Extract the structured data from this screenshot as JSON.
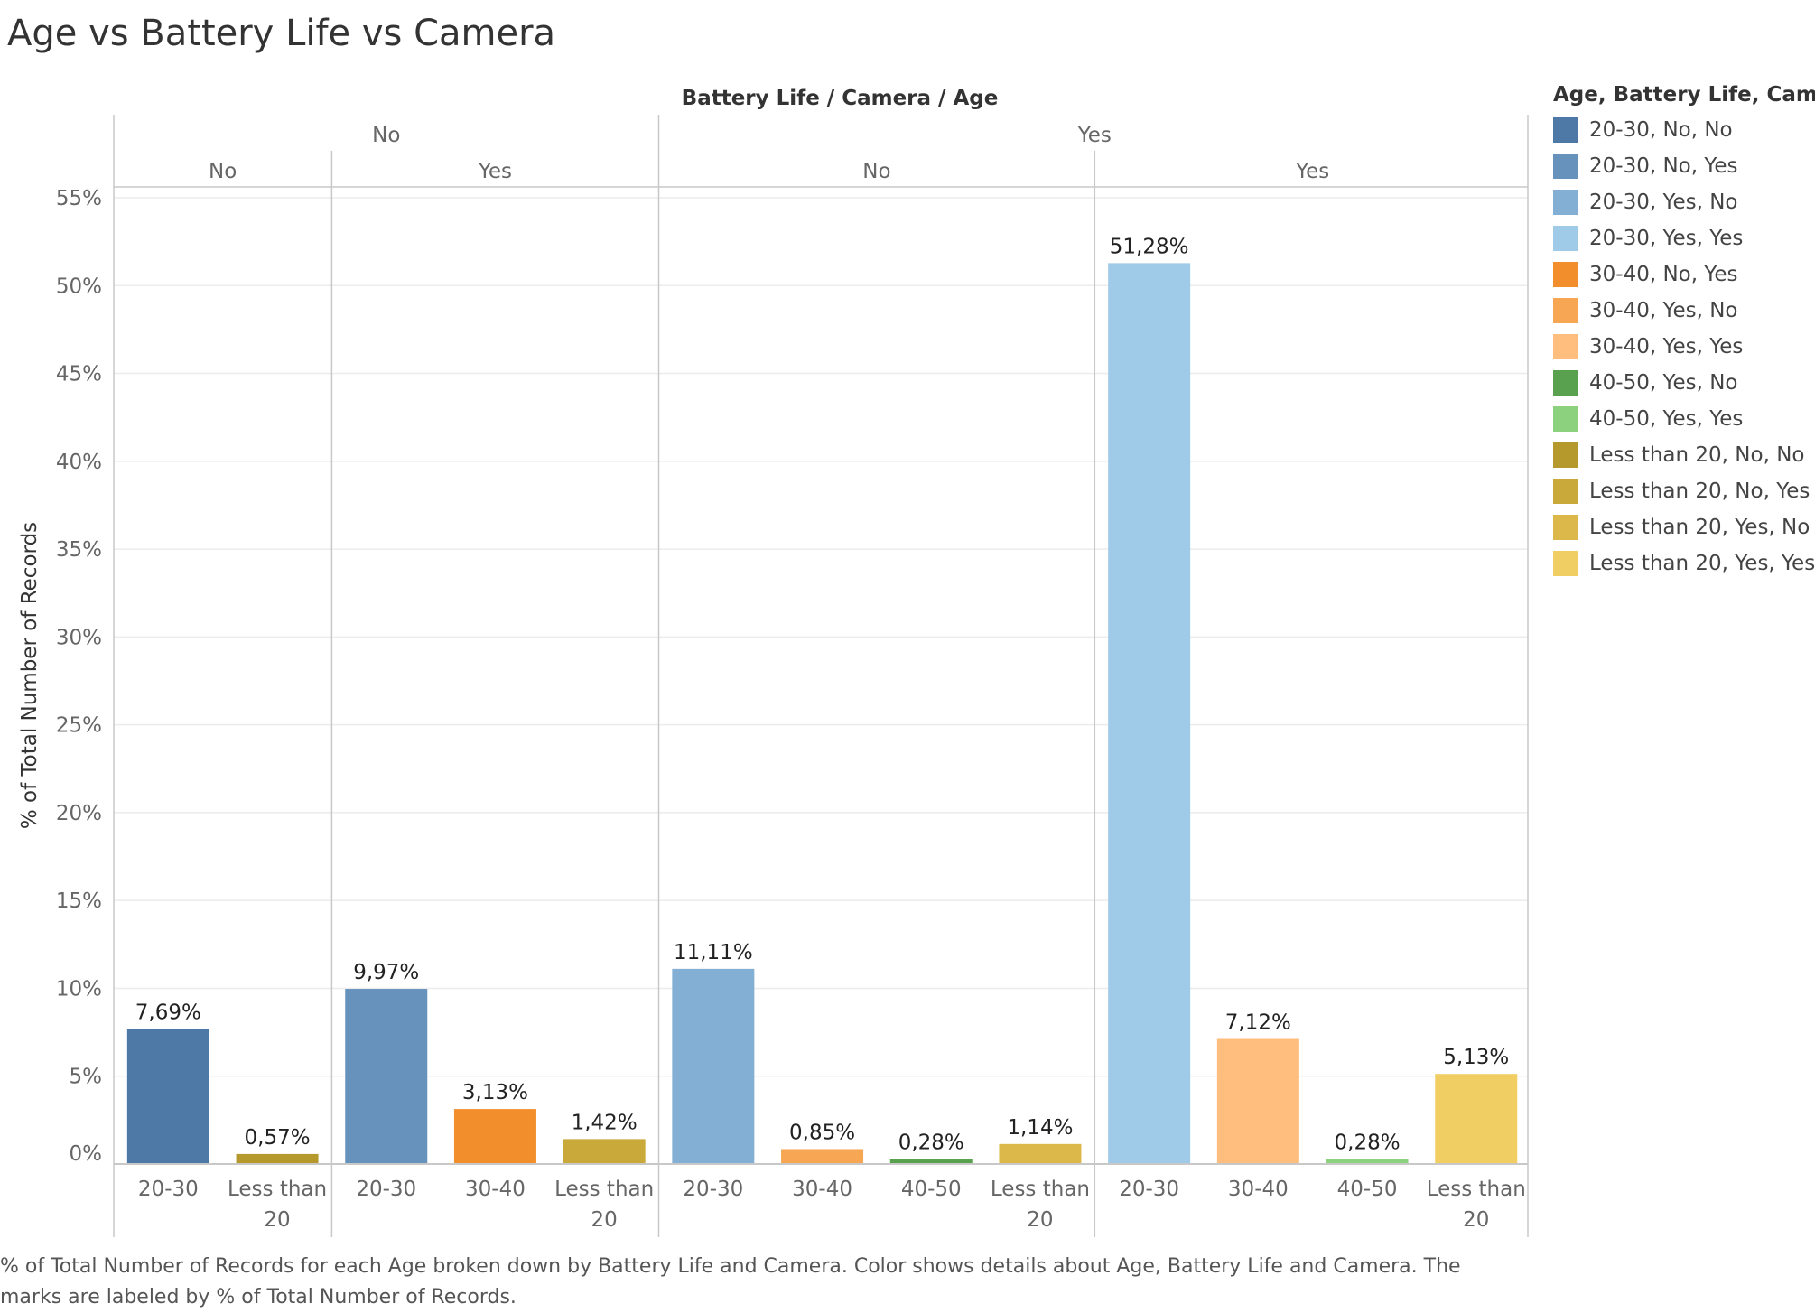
{
  "title": "Age vs Battery Life vs Camera",
  "caption": "% of Total Number of Records for each Age broken down by Battery Life and Camera.  Color shows details about Age, Battery Life and Camera.  The marks are labeled by % of Total Number of Records.",
  "chart_data": {
    "type": "bar",
    "header_title": "Battery Life  /  Camera  /  Age",
    "ylabel": "% of Total Number of Records",
    "ylim": [
      0,
      55
    ],
    "yticks": [
      "0%",
      "5%",
      "10%",
      "15%",
      "20%",
      "25%",
      "30%",
      "35%",
      "40%",
      "45%",
      "50%",
      "55%"
    ],
    "grid": true,
    "legend_position": "right",
    "legend_title": "Age, Battery Life, Camera",
    "legend": [
      {
        "label": "20-30, No, No",
        "color": "#4e79a7"
      },
      {
        "label": "20-30, No, Yes",
        "color": "#6792bc"
      },
      {
        "label": "20-30, Yes, No",
        "color": "#82afd3"
      },
      {
        "label": "20-30, Yes, Yes",
        "color": "#a0cbe8"
      },
      {
        "label": "30-40, No, Yes",
        "color": "#f28e2b"
      },
      {
        "label": "30-40, Yes, No",
        "color": "#f7a653"
      },
      {
        "label": "30-40, Yes, Yes",
        "color": "#ffbe7d"
      },
      {
        "label": "40-50, Yes, No",
        "color": "#59a14f"
      },
      {
        "label": "40-50, Yes, Yes",
        "color": "#8cd17d"
      },
      {
        "label": "Less than 20, No, No",
        "color": "#b6992d"
      },
      {
        "label": "Less than 20, No, Yes",
        "color": "#c9a93a"
      },
      {
        "label": "Less than 20, Yes, No",
        "color": "#dcb84a"
      },
      {
        "label": "Less than 20, Yes, Yes",
        "color": "#f1ce63"
      }
    ],
    "groups": [
      {
        "battery": "No",
        "camera": "No",
        "bars": [
          {
            "age": "20-30",
            "value": 7.69,
            "label": "7,69%",
            "color": "#4e79a7"
          },
          {
            "age": "Less than 20",
            "value": 0.57,
            "label": "0,57%",
            "color": "#b6992d"
          }
        ]
      },
      {
        "battery": "No",
        "camera": "Yes",
        "bars": [
          {
            "age": "20-30",
            "value": 9.97,
            "label": "9,97%",
            "color": "#6792bc"
          },
          {
            "age": "30-40",
            "value": 3.13,
            "label": "3,13%",
            "color": "#f28e2b"
          },
          {
            "age": "Less than 20",
            "value": 1.42,
            "label": "1,42%",
            "color": "#c9a93a"
          }
        ]
      },
      {
        "battery": "Yes",
        "camera": "No",
        "bars": [
          {
            "age": "20-30",
            "value": 11.11,
            "label": "11,11%",
            "color": "#82afd3"
          },
          {
            "age": "30-40",
            "value": 0.85,
            "label": "0,85%",
            "color": "#f7a653"
          },
          {
            "age": "40-50",
            "value": 0.28,
            "label": "0,28%",
            "color": "#59a14f"
          },
          {
            "age": "Less than 20",
            "value": 1.14,
            "label": "1,14%",
            "color": "#dcb84a"
          }
        ]
      },
      {
        "battery": "Yes",
        "camera": "Yes",
        "bars": [
          {
            "age": "20-30",
            "value": 51.28,
            "label": "51,28%",
            "color": "#a0cbe8"
          },
          {
            "age": "30-40",
            "value": 7.12,
            "label": "7,12%",
            "color": "#ffbe7d"
          },
          {
            "age": "40-50",
            "value": 0.28,
            "label": "0,28%",
            "color": "#8cd17d"
          },
          {
            "age": "Less than 20",
            "value": 5.13,
            "label": "5,13%",
            "color": "#f1ce63"
          }
        ]
      }
    ]
  }
}
